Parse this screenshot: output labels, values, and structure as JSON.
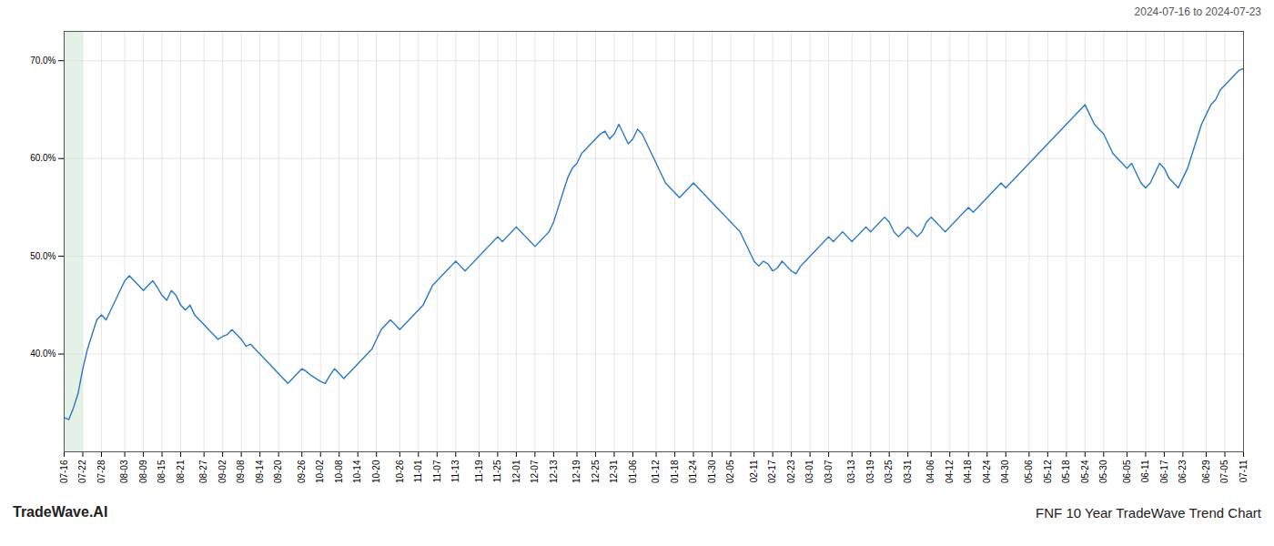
{
  "chart_data": {
    "type": "line",
    "title": "FNF 10 Year TradeWave Trend Chart",
    "subtitle": "2024-07-16 to 2024-07-23",
    "annotations": [
      "TradeWave.AI"
    ],
    "color": "#2878c8",
    "grid": true,
    "ylim": [
      30,
      73
    ],
    "yticks": [
      {
        "value": 40.0,
        "label": "40.0%"
      },
      {
        "value": 50.0,
        "label": "50.0%"
      },
      {
        "value": 60.0,
        "label": "60.0%"
      },
      {
        "value": 70.0,
        "label": "70.0%"
      }
    ],
    "shaded_span": {
      "from": "07-16",
      "to": "07-22",
      "color": "#c8e6c9"
    },
    "categories": [
      "07-16",
      null,
      null,
      null,
      "07-22",
      null,
      null,
      null,
      "07-28",
      null,
      null,
      null,
      null,
      "08-03",
      null,
      null,
      null,
      "08-09",
      null,
      null,
      null,
      "08-15",
      null,
      null,
      null,
      "08-21",
      null,
      null,
      null,
      null,
      "08-27",
      null,
      null,
      null,
      "09-02",
      null,
      null,
      null,
      "09-08",
      null,
      null,
      null,
      "09-14",
      null,
      null,
      null,
      "09-20",
      null,
      null,
      null,
      null,
      "09-26",
      null,
      null,
      null,
      "10-02",
      null,
      null,
      null,
      "10-08",
      null,
      null,
      null,
      "10-14",
      null,
      null,
      null,
      "10-20",
      null,
      null,
      null,
      null,
      "10-26",
      null,
      null,
      null,
      "11-01",
      null,
      null,
      null,
      "11-07",
      null,
      null,
      null,
      "11-13",
      null,
      null,
      null,
      null,
      "11-19",
      null,
      null,
      null,
      "11-25",
      null,
      null,
      null,
      "12-01",
      null,
      null,
      null,
      "12-07",
      null,
      null,
      null,
      "12-13",
      null,
      null,
      null,
      null,
      "12-19",
      null,
      null,
      null,
      "12-25",
      null,
      null,
      null,
      "12-31",
      null,
      null,
      null,
      "01-06",
      null,
      null,
      null,
      null,
      "01-12",
      null,
      null,
      null,
      "01-18",
      null,
      null,
      null,
      "01-24",
      null,
      null,
      null,
      "01-30",
      null,
      null,
      null,
      "02-05",
      null,
      null,
      null,
      null,
      "02-11",
      null,
      null,
      null,
      "02-17",
      null,
      null,
      null,
      "02-23",
      null,
      null,
      null,
      "03-01",
      null,
      null,
      null,
      "03-07",
      null,
      null,
      null,
      null,
      "03-13",
      null,
      null,
      null,
      "03-19",
      null,
      null,
      null,
      "03-25",
      null,
      null,
      null,
      "03-31",
      null,
      null,
      null,
      null,
      "04-06",
      null,
      null,
      null,
      "04-12",
      null,
      null,
      null,
      "04-18",
      null,
      null,
      null,
      "04-24",
      null,
      null,
      null,
      "04-30",
      null,
      null,
      null,
      null,
      "05-06",
      null,
      null,
      null,
      "05-12",
      null,
      null,
      null,
      "05-18",
      null,
      null,
      null,
      "05-24",
      null,
      null,
      null,
      "05-30",
      null,
      null,
      null,
      null,
      "06-05",
      null,
      null,
      null,
      "06-11",
      null,
      null,
      null,
      "06-17",
      null,
      null,
      null,
      "06-23",
      null,
      null,
      null,
      null,
      "06-29",
      null,
      null,
      null,
      "07-05",
      null,
      null,
      null,
      "07-11"
    ],
    "values": [
      33.5,
      33.3,
      34.5,
      36.0,
      38.5,
      40.5,
      42.0,
      43.5,
      44.0,
      43.5,
      44.5,
      45.5,
      46.5,
      47.5,
      48.0,
      47.5,
      47.0,
      46.5,
      47.0,
      47.5,
      46.8,
      46.0,
      45.5,
      46.5,
      46.0,
      45.0,
      44.5,
      45.0,
      44.0,
      43.5,
      43.0,
      42.5,
      42.0,
      41.5,
      41.8,
      42.0,
      42.5,
      42.0,
      41.5,
      40.8,
      41.0,
      40.5,
      40.0,
      39.5,
      39.0,
      38.5,
      38.0,
      37.5,
      37.0,
      37.5,
      38.0,
      38.5,
      38.2,
      37.8,
      37.5,
      37.2,
      37.0,
      37.8,
      38.5,
      38.0,
      37.5,
      38.0,
      38.5,
      39.0,
      39.5,
      40.0,
      40.5,
      41.5,
      42.5,
      43.0,
      43.5,
      43.0,
      42.5,
      43.0,
      43.5,
      44.0,
      44.5,
      45.0,
      46.0,
      47.0,
      47.5,
      48.0,
      48.5,
      49.0,
      49.5,
      49.0,
      48.5,
      49.0,
      49.5,
      50.0,
      50.5,
      51.0,
      51.5,
      52.0,
      51.5,
      52.0,
      52.5,
      53.0,
      52.5,
      52.0,
      51.5,
      51.0,
      51.5,
      52.0,
      52.5,
      53.5,
      55.0,
      56.5,
      58.0,
      59.0,
      59.5,
      60.5,
      61.0,
      61.5,
      62.0,
      62.5,
      62.8,
      62.0,
      62.5,
      63.5,
      62.5,
      61.5,
      62.0,
      63.0,
      62.5,
      61.5,
      60.5,
      59.5,
      58.5,
      57.5,
      57.0,
      56.5,
      56.0,
      56.5,
      57.0,
      57.5,
      57.0,
      56.5,
      56.0,
      55.5,
      55.0,
      54.5,
      54.0,
      53.5,
      53.0,
      52.5,
      51.5,
      50.5,
      49.5,
      49.0,
      49.5,
      49.2,
      48.5,
      48.8,
      49.5,
      49.0,
      48.5,
      48.2,
      49.0,
      49.5,
      50.0,
      50.5,
      51.0,
      51.5,
      52.0,
      51.5,
      52.0,
      52.5,
      52.0,
      51.5,
      52.0,
      52.5,
      53.0,
      52.5,
      53.0,
      53.5,
      54.0,
      53.5,
      52.5,
      52.0,
      52.5,
      53.0,
      52.5,
      52.0,
      52.5,
      53.5,
      54.0,
      53.5,
      53.0,
      52.5,
      53.0,
      53.5,
      54.0,
      54.5,
      55.0,
      54.5,
      55.0,
      55.5,
      56.0,
      56.5,
      57.0,
      57.5,
      57.0,
      57.5,
      58.0,
      58.5,
      59.0,
      59.5,
      60.0,
      60.5,
      61.0,
      61.5,
      62.0,
      62.5,
      63.0,
      63.5,
      64.0,
      64.5,
      65.0,
      65.5,
      64.5,
      63.5,
      63.0,
      62.5,
      61.5,
      60.5,
      60.0,
      59.5,
      59.0,
      59.5,
      58.5,
      57.5,
      57.0,
      57.5,
      58.5,
      59.5,
      59.0,
      58.0,
      57.5,
      57.0,
      58.0,
      59.0,
      60.5,
      62.0,
      63.5,
      64.5,
      65.5,
      66.0,
      67.0,
      67.5,
      68.0,
      68.5,
      69.0,
      69.2
    ]
  }
}
